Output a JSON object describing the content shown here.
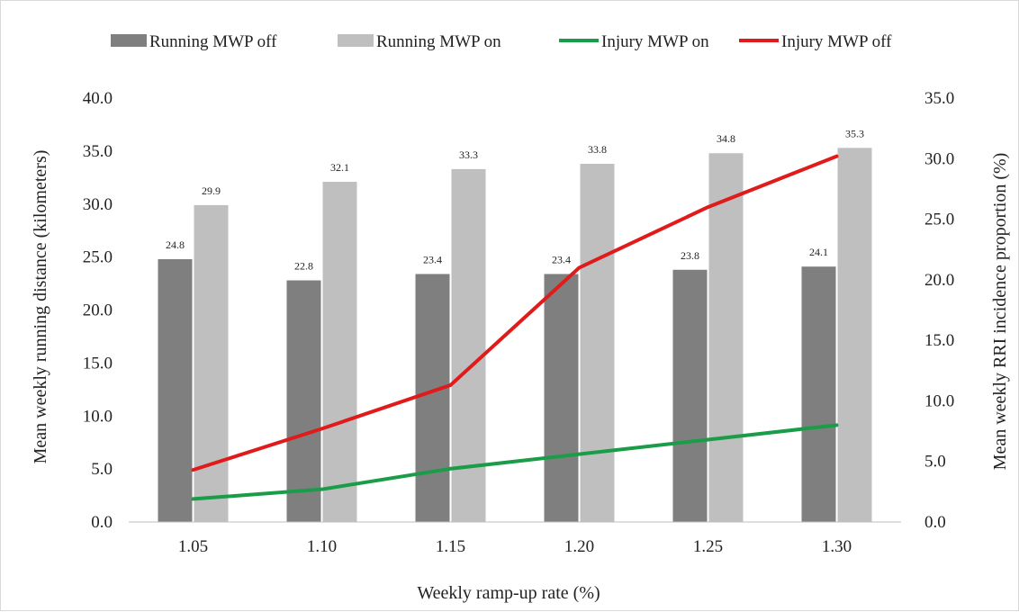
{
  "chart_data": {
    "type": "bar",
    "categories": [
      "1.05",
      "1.10",
      "1.15",
      "1.20",
      "1.25",
      "1.30"
    ],
    "series": [
      {
        "name": "Running MWP off",
        "kind": "bar",
        "axis": "left",
        "color": "#7f7f7f",
        "values": [
          24.8,
          22.8,
          23.4,
          23.4,
          23.8,
          24.1
        ],
        "labels": [
          "24.8",
          "22.8",
          "23.4",
          "23.4",
          "23.8",
          "24.1"
        ]
      },
      {
        "name": "Running MWP on",
        "kind": "bar",
        "axis": "left",
        "color": "#bfbfbf",
        "values": [
          29.9,
          32.1,
          33.3,
          33.8,
          34.8,
          35.3
        ],
        "labels": [
          "29.9",
          "32.1",
          "33.3",
          "33.8",
          "34.8",
          "35.3"
        ]
      },
      {
        "name": "Injury MWP on",
        "kind": "line",
        "axis": "right",
        "color": "#1a9c48",
        "values": [
          1.9,
          2.7,
          4.4,
          5.6,
          6.8,
          8.0
        ]
      },
      {
        "name": "Injury MWP off",
        "kind": "line",
        "axis": "right",
        "color": "#e01b1b",
        "values": [
          4.3,
          7.7,
          11.3,
          21.0,
          26.0,
          30.2
        ]
      }
    ],
    "xlabel": "Weekly ramp-up rate (%)",
    "ylabel": "Mean weekly running distance (kilometers)",
    "y2label": "Mean weekly RRI incidence proportion (%)",
    "ylim": [
      0,
      40
    ],
    "y2lim": [
      0,
      35
    ],
    "yticks": [
      "0.0",
      "5.0",
      "10.0",
      "15.0",
      "20.0",
      "25.0",
      "30.0",
      "35.0",
      "40.0"
    ],
    "y2ticks": [
      "0.0",
      "5.0",
      "10.0",
      "15.0",
      "20.0",
      "25.0",
      "30.0",
      "35.0"
    ],
    "grid": false,
    "legend_position": "top"
  }
}
